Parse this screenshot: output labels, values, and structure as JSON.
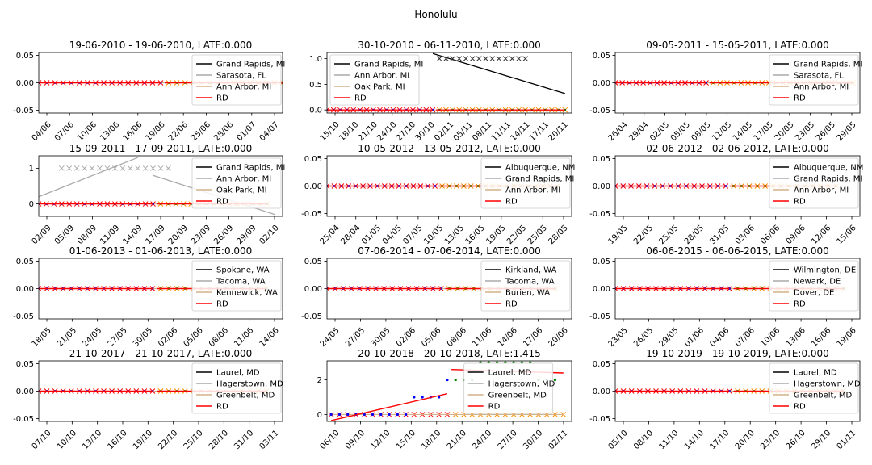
{
  "suptitle": "Honolulu",
  "colors": {
    "line_primary": "#000000",
    "line_secondary": "#aaaaaa",
    "line_tertiary": "#d2b48c",
    "rd": "#ff0000",
    "dots_blue": "#0000ff",
    "dots_green": "#008000",
    "cross_a": "#333333",
    "cross_b": "#aaaaaa",
    "cross_orange": "#ff8c00",
    "cross_red": "#ff0000"
  },
  "chart_data": [
    {
      "type": "line",
      "title": "19-06-2010 - 19-06-2010, LATE:0.000",
      "legend": [
        "Grand Rapids, MI",
        "Sarasota, FL",
        "Ann Arbor, MI",
        "RD"
      ],
      "legend_loc": "right",
      "x_ticks": [
        "04/06",
        "07/06",
        "10/06",
        "13/06",
        "16/06",
        "19/06",
        "22/06",
        "25/06",
        "28/06",
        "01/07",
        "04/07"
      ],
      "xlim": [
        0,
        30
      ],
      "ylim": [
        -0.055,
        0.055
      ],
      "y_ticks": [
        "-0.05",
        "0.00",
        "0.05"
      ],
      "y_tick_values": [
        -0.05,
        0,
        0.05
      ],
      "cutoff": 15,
      "start": 0,
      "end": 30,
      "pre_values": 0,
      "post_values": 0,
      "rd_pre": [
        [
          0,
          0
        ],
        [
          15,
          0
        ]
      ],
      "rd_post": [
        [
          15.5,
          0
        ],
        [
          30,
          0
        ]
      ],
      "extra_lines": [],
      "extra_crosses": []
    },
    {
      "type": "line",
      "title": "30-10-2010 - 06-11-2010, LATE:0.000",
      "legend": [
        "Grand Rapids, MI",
        "Ann Arbor, MI",
        "Oak Park, MI",
        "RD"
      ],
      "legend_loc": "left",
      "x_ticks": [
        "15/10",
        "18/10",
        "21/10",
        "24/10",
        "27/10",
        "30/10",
        "02/11",
        "05/11",
        "08/11",
        "11/11",
        "14/11",
        "17/11",
        "20/11"
      ],
      "xlim": [
        0,
        37
      ],
      "ylim": [
        -0.06,
        1.12
      ],
      "y_ticks": [
        "0.0",
        "0.5",
        "1.0"
      ],
      "y_tick_values": [
        0,
        0.5,
        1
      ],
      "cutoff": 16,
      "start": 0,
      "end": 36,
      "pre_values": 0,
      "post_values": 0,
      "rd_pre": [
        [
          0,
          0
        ],
        [
          16,
          0
        ]
      ],
      "rd_post": [
        [
          16.5,
          0
        ],
        [
          36,
          0
        ]
      ],
      "extra_lines": [
        {
          "color": "line_primary",
          "points": [
            [
              16,
              1.1
            ],
            [
              36,
              0.32
            ]
          ]
        }
      ],
      "extra_crosses": [
        {
          "color": "cross_a",
          "y": 1,
          "x_from": 17,
          "x_to": 30
        }
      ]
    },
    {
      "type": "line",
      "title": "09-05-2011 - 15-05-2011, LATE:0.000",
      "legend": [
        "Grand Rapids, MI",
        "Sarasota, FL",
        "Ann Arbor, MI",
        "RD"
      ],
      "legend_loc": "right",
      "x_ticks": [
        "26/04",
        "29/04",
        "02/05",
        "05/05",
        "08/05",
        "11/05",
        "14/05",
        "17/05",
        "20/05",
        "23/05",
        "26/05",
        "29/05"
      ],
      "xlim": [
        0,
        35
      ],
      "ylim": [
        -0.055,
        0.055
      ],
      "y_ticks": [
        "-0.05",
        "0.00",
        "0.05"
      ],
      "y_tick_values": [
        -0.05,
        0,
        0.05
      ],
      "cutoff": 13,
      "start": 0,
      "end": 34,
      "pre_values": 0,
      "post_values": 0,
      "rd_pre": [
        [
          0,
          0
        ],
        [
          13,
          0
        ]
      ],
      "rd_post": [
        [
          13.5,
          0
        ],
        [
          34,
          0
        ]
      ],
      "extra_lines": [],
      "extra_crosses": []
    },
    {
      "type": "line",
      "title": "15-09-2011 - 17-09-2011, LATE:0.000",
      "legend": [
        "Grand Rapids, MI",
        "Ann Arbor, MI",
        "Oak Park, MI",
        "RD"
      ],
      "legend_loc": "right",
      "x_ticks": [
        "02/09",
        "05/09",
        "08/09",
        "11/09",
        "14/09",
        "17/09",
        "20/09",
        "23/09",
        "26/09",
        "29/09",
        "02/10"
      ],
      "xlim": [
        0,
        32
      ],
      "ylim": [
        -0.35,
        1.35
      ],
      "y_ticks": [
        "0",
        "1"
      ],
      "y_tick_values": [
        0,
        1
      ],
      "cutoff": 15,
      "start": 0,
      "end": 30,
      "pre_values": 0,
      "post_values": 0,
      "rd_pre": [
        [
          0,
          0
        ],
        [
          15,
          0
        ]
      ],
      "rd_post": [
        [
          15.5,
          0
        ],
        [
          30,
          0
        ]
      ],
      "extra_lines": [
        {
          "color": "line_secondary",
          "points": [
            [
              0,
              0.2
            ],
            [
              13,
              1.3
            ]
          ]
        },
        {
          "color": "line_secondary",
          "points": [
            [
              15,
              0.8
            ],
            [
              31,
              -0.3
            ]
          ]
        }
      ],
      "extra_crosses": [
        {
          "color": "cross_b",
          "y": 1,
          "x_from": 3,
          "x_to": 17
        }
      ]
    },
    {
      "type": "line",
      "title": "10-05-2012 - 13-05-2012, LATE:0.000",
      "legend": [
        "Albuquerque, NM",
        "Grand Rapids, MI",
        "Ann Arbor, MI",
        "RD"
      ],
      "legend_loc": "right",
      "x_ticks": [
        "25/04",
        "28/04",
        "01/05",
        "04/05",
        "07/05",
        "10/05",
        "13/05",
        "16/05",
        "19/05",
        "22/05",
        "25/05",
        "28/05"
      ],
      "xlim": [
        0,
        34
      ],
      "ylim": [
        -0.055,
        0.055
      ],
      "y_ticks": [
        "-0.05",
        "0.00",
        "0.05"
      ],
      "y_tick_values": [
        -0.05,
        0,
        0.05
      ],
      "cutoff": 15,
      "start": 0,
      "end": 32,
      "pre_values": 0,
      "post_values": 0,
      "rd_pre": [
        [
          0,
          0
        ],
        [
          15,
          0
        ]
      ],
      "rd_post": [
        [
          15.5,
          0
        ],
        [
          32,
          0
        ]
      ],
      "extra_lines": [],
      "extra_crosses": []
    },
    {
      "type": "line",
      "title": "02-06-2012 - 02-06-2012, LATE:0.000",
      "legend": [
        "Albuquerque, NM",
        "Grand Rapids, MI",
        "Ann Arbor, MI",
        "RD"
      ],
      "legend_loc": "right",
      "x_ticks": [
        "19/05",
        "22/05",
        "25/05",
        "28/05",
        "31/05",
        "03/06",
        "06/06",
        "09/06",
        "12/06",
        "15/06"
      ],
      "xlim": [
        0,
        31
      ],
      "ylim": [
        -0.055,
        0.055
      ],
      "y_ticks": [
        "-0.05",
        "0.00",
        "0.05"
      ],
      "y_tick_values": [
        -0.05,
        0,
        0.05
      ],
      "cutoff": 14,
      "start": 0,
      "end": 28,
      "pre_values": 0,
      "post_values": 0,
      "rd_pre": [
        [
          0,
          0
        ],
        [
          14,
          0
        ]
      ],
      "rd_post": [
        [
          14.5,
          0
        ],
        [
          28,
          0
        ]
      ],
      "extra_lines": [],
      "extra_crosses": []
    },
    {
      "type": "line",
      "title": "01-06-2013 - 01-06-2013, LATE:0.000",
      "legend": [
        "Spokane, WA",
        "Tacoma, WA",
        "Kennewick, WA",
        "RD"
      ],
      "legend_loc": "right",
      "x_ticks": [
        "18/05",
        "21/05",
        "24/05",
        "27/05",
        "30/05",
        "02/06",
        "05/06",
        "08/06",
        "11/06",
        "14/06"
      ],
      "xlim": [
        0,
        30
      ],
      "ylim": [
        -0.055,
        0.055
      ],
      "y_ticks": [
        "-0.05",
        "0.00",
        "0.05"
      ],
      "y_tick_values": [
        -0.05,
        0,
        0.05
      ],
      "cutoff": 14,
      "start": 0,
      "end": 28,
      "pre_values": 0,
      "post_values": 0,
      "rd_pre": [
        [
          0,
          0
        ],
        [
          14,
          0
        ]
      ],
      "rd_post": [
        [
          14.5,
          0
        ],
        [
          28,
          0
        ]
      ],
      "extra_lines": [],
      "extra_crosses": []
    },
    {
      "type": "line",
      "title": "07-06-2014 - 07-06-2014, LATE:0.000",
      "legend": [
        "Kirkland, WA",
        "Tacoma, WA",
        "Burien, WA",
        "RD"
      ],
      "legend_loc": "right",
      "x_ticks": [
        "24/05",
        "27/05",
        "30/05",
        "02/06",
        "05/06",
        "08/06",
        "11/06",
        "14/06",
        "17/06",
        "20/06"
      ],
      "xlim": [
        0,
        30
      ],
      "ylim": [
        -0.055,
        0.055
      ],
      "y_ticks": [
        "-0.05",
        "0.00",
        "0.05"
      ],
      "y_tick_values": [
        -0.05,
        0,
        0.05
      ],
      "cutoff": 14,
      "start": 0,
      "end": 28,
      "pre_values": 0,
      "post_values": 0,
      "rd_pre": [
        [
          0,
          0
        ],
        [
          14,
          0
        ]
      ],
      "rd_post": [
        [
          14.5,
          0
        ],
        [
          28,
          0
        ]
      ],
      "extra_lines": [],
      "extra_crosses": []
    },
    {
      "type": "line",
      "title": "06-06-2015 - 06-06-2015, LATE:0.000",
      "legend": [
        "Wilmington, DE",
        "Newark, DE",
        "Dover, DE",
        "RD"
      ],
      "legend_loc": "right",
      "x_ticks": [
        "23/05",
        "26/05",
        "29/05",
        "01/06",
        "04/06",
        "07/06",
        "10/06",
        "13/06",
        "16/06",
        "19/06"
      ],
      "xlim": [
        0,
        30
      ],
      "ylim": [
        -0.055,
        0.055
      ],
      "y_ticks": [
        "-0.05",
        "0.00",
        "0.05"
      ],
      "y_tick_values": [
        -0.05,
        0,
        0.05
      ],
      "cutoff": 14,
      "start": 0,
      "end": 28,
      "pre_values": 0,
      "post_values": 0,
      "rd_pre": [
        [
          0,
          0
        ],
        [
          14,
          0
        ]
      ],
      "rd_post": [
        [
          14.5,
          0
        ],
        [
          28,
          0
        ]
      ],
      "extra_lines": [],
      "extra_crosses": []
    },
    {
      "type": "line",
      "title": "21-10-2017 - 21-10-2017, LATE:0.000",
      "legend": [
        "Laurel, MD",
        "Hagerstown, MD",
        "Greenbelt, MD",
        "RD"
      ],
      "legend_loc": "right",
      "x_ticks": [
        "07/10",
        "10/10",
        "13/10",
        "16/10",
        "19/10",
        "22/10",
        "25/10",
        "28/10",
        "31/10",
        "03/11"
      ],
      "xlim": [
        0,
        30
      ],
      "ylim": [
        -0.055,
        0.055
      ],
      "y_ticks": [
        "-0.05",
        "0.00",
        "0.05"
      ],
      "y_tick_values": [
        -0.05,
        0,
        0.05
      ],
      "cutoff": 14,
      "start": 0,
      "end": 28,
      "pre_values": 0,
      "post_values": 0,
      "rd_pre": [
        [
          0,
          0
        ],
        [
          14,
          0
        ]
      ],
      "rd_post": [
        [
          14.5,
          0
        ],
        [
          28,
          0
        ]
      ],
      "extra_lines": [],
      "extra_crosses": []
    },
    {
      "type": "line",
      "title": "20-10-2018 - 20-10-2018, LATE:1.415",
      "legend": [
        "Laurel, MD",
        "Hagerstown, MD",
        "Greenbelt, MD",
        "RD"
      ],
      "legend_loc": "center",
      "x_ticks": [
        "06/10",
        "09/10",
        "12/10",
        "15/10",
        "18/10",
        "21/10",
        "24/10",
        "27/10",
        "30/10",
        "02/11"
      ],
      "xlim": [
        -0.5,
        29
      ],
      "ylim": [
        -0.4,
        3.1
      ],
      "y_ticks": [
        "0",
        "2"
      ],
      "y_tick_values": [
        0,
        2
      ],
      "cutoff": 14,
      "start": 0,
      "end": 28,
      "pre_values": 0,
      "post_values": 0,
      "rd_pre": [
        [
          0,
          -0.35
        ],
        [
          14,
          1.2
        ]
      ],
      "rd_post": [
        [
          14.5,
          2.6
        ],
        [
          28,
          2.4
        ]
      ],
      "extra_lines": [],
      "extra_crosses": [],
      "dots_blue": [
        [
          0,
          0
        ],
        [
          1,
          0
        ],
        [
          2,
          0
        ],
        [
          3,
          0
        ],
        [
          4,
          0
        ],
        [
          5,
          0
        ],
        [
          6,
          0
        ],
        [
          7,
          0
        ],
        [
          8,
          0
        ],
        [
          9,
          0
        ],
        [
          10,
          1
        ],
        [
          11,
          1
        ],
        [
          12,
          1
        ],
        [
          13,
          1
        ],
        [
          14,
          2
        ]
      ],
      "dots_green": [
        [
          15,
          2
        ],
        [
          16,
          2
        ],
        [
          17,
          2
        ],
        [
          18,
          3
        ],
        [
          19,
          3
        ],
        [
          20,
          3
        ],
        [
          21,
          3
        ],
        [
          22,
          3
        ],
        [
          23,
          3
        ],
        [
          24,
          3
        ],
        [
          25,
          2
        ],
        [
          26,
          2
        ],
        [
          27,
          2
        ]
      ]
    },
    {
      "type": "line",
      "title": "19-10-2019 - 19-10-2019, LATE:0.000",
      "legend": [
        "Laurel, MD",
        "Hagerstown, MD",
        "Greenbelt, MD",
        "RD"
      ],
      "legend_loc": "right",
      "x_ticks": [
        "05/10",
        "08/10",
        "11/10",
        "14/10",
        "17/10",
        "20/10",
        "23/10",
        "26/10",
        "29/10",
        "01/11"
      ],
      "xlim": [
        0,
        30
      ],
      "ylim": [
        -0.055,
        0.055
      ],
      "y_ticks": [
        "-0.05",
        "0.00",
        "0.05"
      ],
      "y_tick_values": [
        -0.05,
        0,
        0.05
      ],
      "cutoff": 14,
      "start": 0,
      "end": 28,
      "pre_values": 0,
      "post_values": 0,
      "rd_pre": [
        [
          0,
          0
        ],
        [
          14,
          0
        ]
      ],
      "rd_post": [
        [
          14.5,
          0
        ],
        [
          28,
          0
        ]
      ],
      "extra_lines": [],
      "extra_crosses": []
    }
  ]
}
